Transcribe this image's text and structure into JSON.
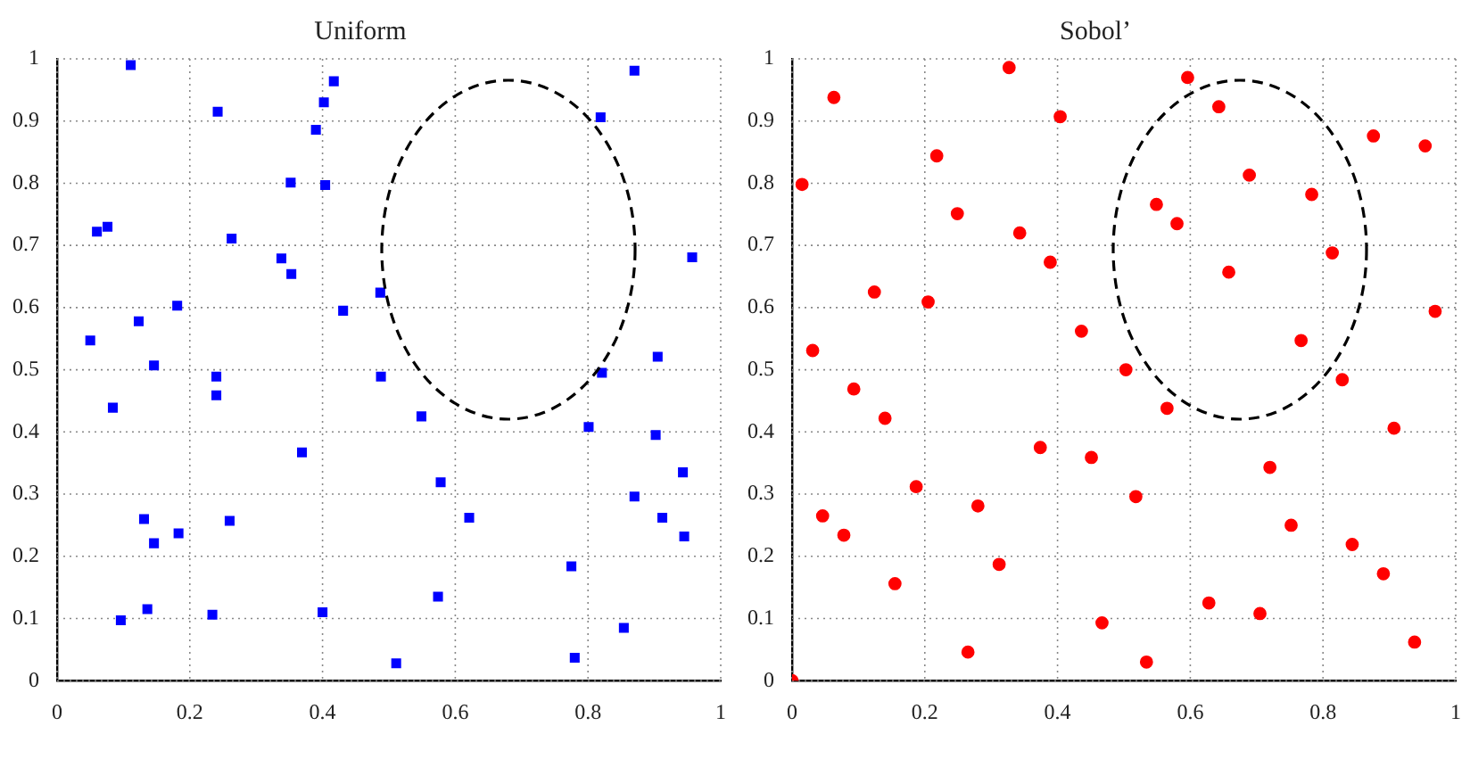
{
  "chart_data": [
    {
      "type": "scatter",
      "title": "Uniform",
      "xlim": [
        0,
        1
      ],
      "ylim": [
        0,
        1
      ],
      "xticks": [
        0,
        0.2,
        0.4,
        0.6,
        0.8,
        1
      ],
      "yticks": [
        0,
        0.1,
        0.2,
        0.3,
        0.4,
        0.5,
        0.6,
        0.7,
        0.8,
        0.9,
        1
      ],
      "grid": true,
      "series": [
        {
          "color": "#0000ff",
          "marker": "square",
          "x": [
            0.111,
            0.242,
            0.417,
            0.402,
            0.39,
            0.352,
            0.404,
            0.06,
            0.076,
            0.263,
            0.338,
            0.353,
            0.181,
            0.431,
            0.123,
            0.05,
            0.146,
            0.24,
            0.24,
            0.084,
            0.369,
            0.131,
            0.26,
            0.183,
            0.146,
            0.136,
            0.096,
            0.234,
            0.4,
            0.87,
            0.819,
            0.957,
            0.487,
            0.905,
            0.488,
            0.821,
            0.549,
            0.801,
            0.902,
            0.943,
            0.578,
            0.87,
            0.621,
            0.912,
            0.945,
            0.775,
            0.574,
            0.854,
            0.511,
            0.78
          ],
          "values": [
            0.99,
            0.915,
            0.964,
            0.93,
            0.886,
            0.801,
            0.797,
            0.722,
            0.73,
            0.711,
            0.679,
            0.654,
            0.603,
            0.595,
            0.578,
            0.547,
            0.507,
            0.489,
            0.459,
            0.439,
            0.367,
            0.26,
            0.257,
            0.237,
            0.221,
            0.115,
            0.097,
            0.106,
            0.11,
            0.981,
            0.906,
            0.681,
            0.624,
            0.521,
            0.489,
            0.495,
            0.425,
            0.408,
            0.395,
            0.335,
            0.319,
            0.296,
            0.262,
            0.262,
            0.232,
            0.184,
            0.135,
            0.085,
            0.028,
            0.037
          ]
        }
      ]
    },
    {
      "type": "scatter",
      "title": "Sobol’",
      "xlim": [
        0,
        1
      ],
      "ylim": [
        0,
        1
      ],
      "xticks": [
        0,
        0.2,
        0.4,
        0.6,
        0.8,
        1
      ],
      "yticks": [
        0,
        0.1,
        0.2,
        0.3,
        0.4,
        0.5,
        0.6,
        0.7,
        0.8,
        0.9,
        1
      ],
      "grid": true,
      "series": [
        {
          "color": "#ff0000",
          "marker": "circle",
          "x": [
            0,
            0.015,
            0.063,
            0.031,
            0.046,
            0.078,
            0.093,
            0.124,
            0.14,
            0.155,
            0.187,
            0.205,
            0.218,
            0.249,
            0.265,
            0.28,
            0.312,
            0.327,
            0.343,
            0.374,
            0.389,
            0.404,
            0.436,
            0.451,
            0.467,
            0.596,
            0.643,
            0.876,
            0.954,
            0.689,
            0.783,
            0.549,
            0.58,
            0.814,
            0.658,
            0.969,
            0.767,
            0.503,
            0.829,
            0.565,
            0.907,
            0.72,
            0.518,
            0.752,
            0.844,
            0.891,
            0.628,
            0.705,
            0.938,
            0.534
          ],
          "values": [
            0,
            0.798,
            0.938,
            0.531,
            0.265,
            0.234,
            0.469,
            0.625,
            0.422,
            0.156,
            0.312,
            0.609,
            0.844,
            0.751,
            0.046,
            0.281,
            0.187,
            0.986,
            0.72,
            0.375,
            0.673,
            0.907,
            0.562,
            0.359,
            0.093,
            0.97,
            0.923,
            0.876,
            0.86,
            0.813,
            0.782,
            0.766,
            0.735,
            0.688,
            0.657,
            0.594,
            0.547,
            0.5,
            0.484,
            0.438,
            0.406,
            0.343,
            0.296,
            0.25,
            0.219,
            0.172,
            0.125,
            0.108,
            0.062,
            0.03
          ]
        }
      ]
    }
  ]
}
